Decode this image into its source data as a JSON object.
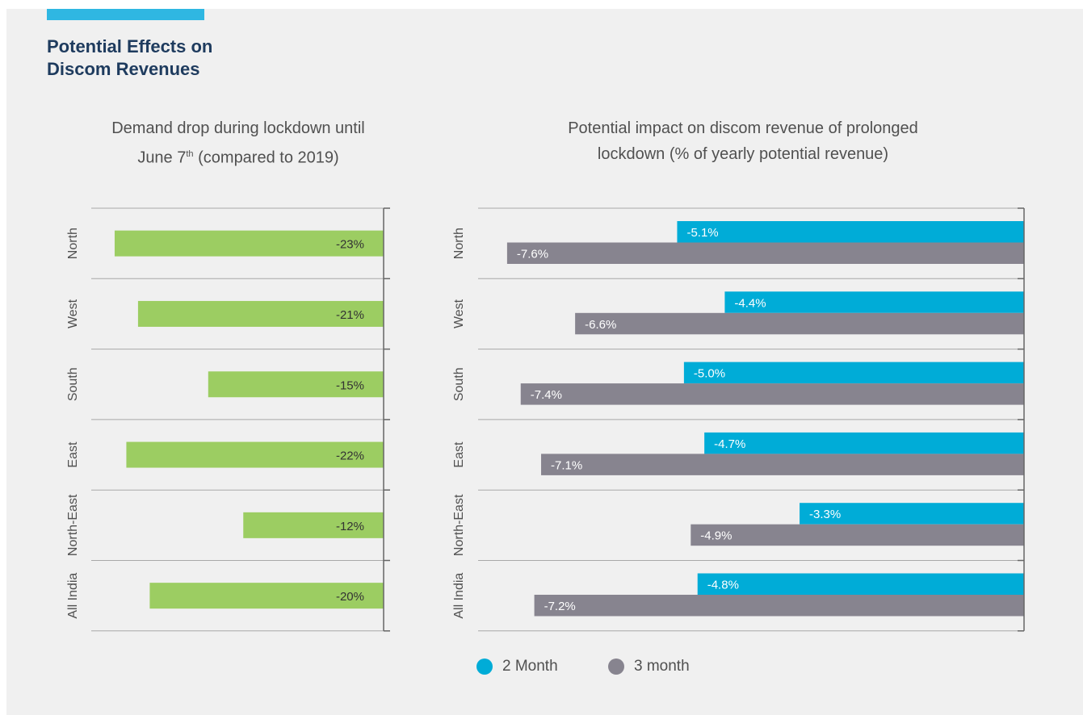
{
  "header": {
    "title_line1": "Potential Effects on",
    "title_line2": "Discom Revenues"
  },
  "colors": {
    "accent": "#2fb7e2",
    "title": "#1e3b5e",
    "demand_bar": "#9ccd62",
    "two_month": "#00acd7",
    "three_month": "#87848f"
  },
  "chart_data": [
    {
      "type": "bar",
      "orientation": "horizontal",
      "title_line1": "Demand drop during lockdown until",
      "title_line2_pre": "June 7",
      "title_line2_sup": "th",
      "title_line2_post": " (compared to 2019)",
      "categories": [
        "North",
        "West",
        "South",
        "East",
        "North-East",
        "All India"
      ],
      "values": [
        -23,
        -21,
        -15,
        -22,
        -12,
        -20
      ],
      "labels": [
        "-23%",
        "-21%",
        "-15%",
        "-22%",
        "-12%",
        "-20%"
      ],
      "xlim": [
        -25,
        0
      ],
      "grid": false
    },
    {
      "type": "bar",
      "orientation": "horizontal",
      "title_line1": "Potential impact on discom revenue of prolonged",
      "title_line2": "lockdown (% of yearly potential revenue)",
      "categories": [
        "North",
        "West",
        "South",
        "East",
        "North-East",
        "All India"
      ],
      "series": [
        {
          "name": "2 Month",
          "values": [
            -5.1,
            -4.4,
            -5.0,
            -4.7,
            -3.3,
            -4.8
          ],
          "labels": [
            "-5.1%",
            "-4.4%",
            "-5.0%",
            "-4.7%",
            "-3.3%",
            "-4.8%"
          ]
        },
        {
          "name": "3 month",
          "values": [
            -7.6,
            -6.6,
            -7.4,
            -7.1,
            -4.9,
            -7.2
          ],
          "labels": [
            "-7.6%",
            "-6.6%",
            "-7.4%",
            "-7.1%",
            "-4.9%",
            "-7.2%"
          ]
        }
      ],
      "xlim": [
        -8.05,
        0
      ],
      "legend": "bottom",
      "grid": false
    }
  ]
}
